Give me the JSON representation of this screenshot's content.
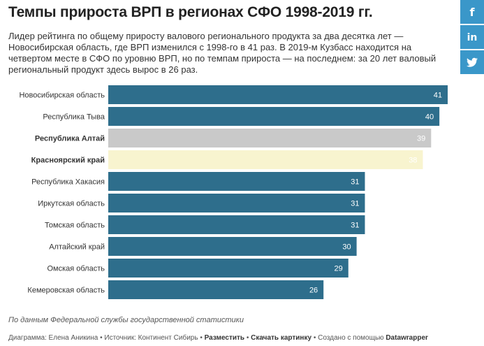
{
  "header": {
    "title": "Темпы прироста ВРП в регионах СФО 1998-2019 гг.",
    "subtitle": "Лидер рейтинга по общему приросту валового регионального продукта за два десятка лет — Новосибирская область, где ВРП изменился с 1998-го в 41 раз. В 2019-м Кузбасс находится на четвертом месте в СФО по уровню ВРП, но по темпам прироста — на последнем: за 20 лет валовый региональный продукт здесь вырос в 26 раз."
  },
  "social": {
    "facebook_icon": "facebook-icon",
    "linkedin_icon": "linkedin-icon",
    "twitter_icon": "twitter-icon",
    "color": "#3a97c9"
  },
  "chart_data": {
    "type": "bar",
    "orientation": "horizontal",
    "categories": [
      "Новосибирская область",
      "Республика Тыва",
      "Республика Алтай",
      "Красноярский край",
      "Республика Хакасия",
      "Иркутская область",
      "Томская область",
      "Алтайский край",
      "Омская область",
      "Кемеровская область"
    ],
    "values": [
      41,
      40,
      39,
      38,
      31,
      31,
      31,
      30,
      29,
      26
    ],
    "highlighted": [
      false,
      false,
      true,
      true,
      false,
      false,
      false,
      false,
      false,
      false
    ],
    "colors": [
      "#2e6e8c",
      "#2e6e8c",
      "#c9c9c9",
      "#f8f4cf",
      "#2e6e8c",
      "#2e6e8c",
      "#2e6e8c",
      "#2e6e8c",
      "#2e6e8c",
      "#2e6e8c"
    ],
    "xlim": [
      0,
      41
    ],
    "title": "",
    "xlabel": "",
    "ylabel": ""
  },
  "footer": {
    "source_note": "По данным Федеральной службы государственной статистики",
    "diagram_label": "Диаграмма: Елена Аникина",
    "source_label": "Источник: Континент Сибирь",
    "embed_label": "Разместить",
    "download_label": "Скачать картинку",
    "created_with": "Создано с помощью",
    "tool_name": "Datawrapper",
    "separator": " • "
  }
}
